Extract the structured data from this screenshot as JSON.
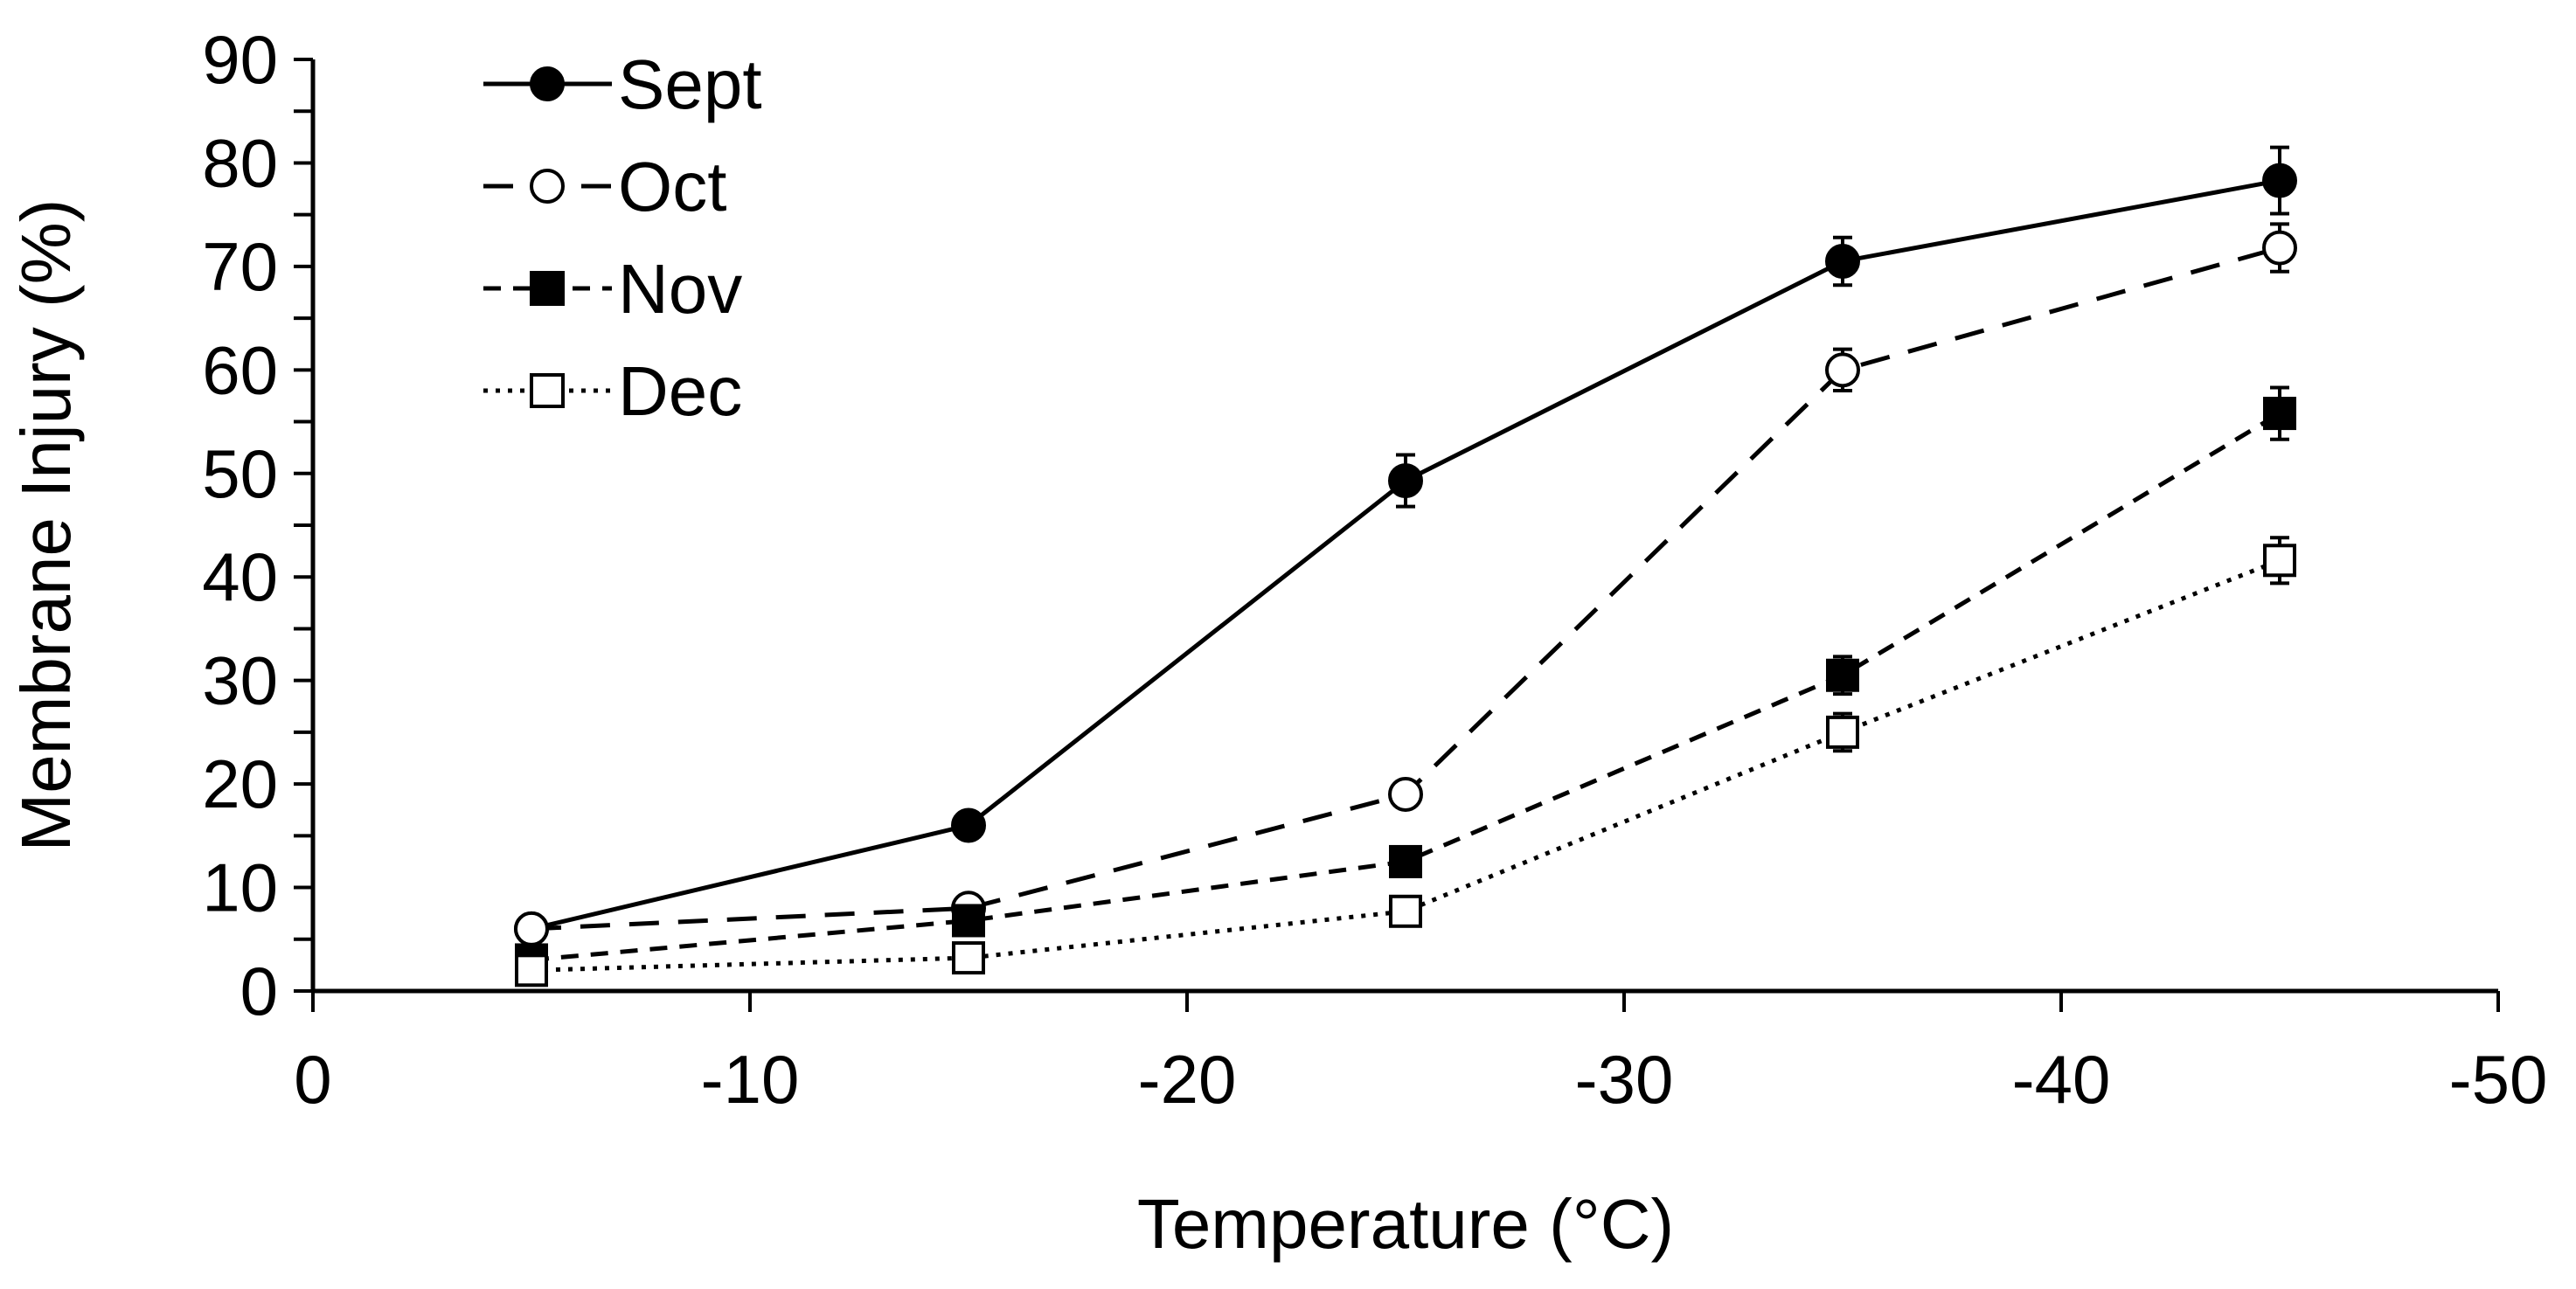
{
  "chart_data": {
    "type": "line",
    "title": "",
    "xlabel": "Temperature (°C)",
    "ylabel": "Membrane Injury (%)",
    "xlim": [
      0,
      -50
    ],
    "ylim": [
      0,
      90
    ],
    "x_ticks": [
      "0",
      "-10",
      "-20",
      "-30",
      "-40",
      "-50"
    ],
    "x_tick_values": [
      0,
      -10,
      -20,
      -30,
      -40,
      -50
    ],
    "y_ticks": [
      "0",
      "10",
      "20",
      "30",
      "40",
      "50",
      "60",
      "70",
      "80",
      "90"
    ],
    "y_tick_values": [
      0,
      10,
      20,
      30,
      40,
      50,
      60,
      70,
      80,
      90
    ],
    "grid": false,
    "legend_position": "top-left",
    "x": [
      -5,
      -15,
      -25,
      -35,
      -45
    ],
    "series": [
      {
        "name": "Sept",
        "values": [
          6,
          16,
          49.3,
          70.5,
          78.3
        ],
        "errors": [
          0.8,
          0.8,
          2.5,
          2.3,
          3.2
        ],
        "line": "solid",
        "marker": "circle",
        "filled": true
      },
      {
        "name": "Oct",
        "values": [
          6,
          8,
          19,
          60,
          71.8
        ],
        "errors": [
          0.7,
          0.7,
          1.0,
          2.0,
          2.3
        ],
        "line": "dashed",
        "marker": "circle",
        "filled": false
      },
      {
        "name": "Nov",
        "values": [
          3,
          6.8,
          12.5,
          30.5,
          55.8
        ],
        "errors": [
          0.5,
          0.6,
          1.0,
          1.8,
          2.5
        ],
        "line": "short-dashed",
        "marker": "square",
        "filled": true
      },
      {
        "name": "Dec",
        "values": [
          2,
          3.2,
          7.7,
          25,
          41.6
        ],
        "errors": [
          0.4,
          0.5,
          0.8,
          1.8,
          2.2
        ],
        "line": "dotted",
        "marker": "square",
        "filled": false
      }
    ]
  }
}
